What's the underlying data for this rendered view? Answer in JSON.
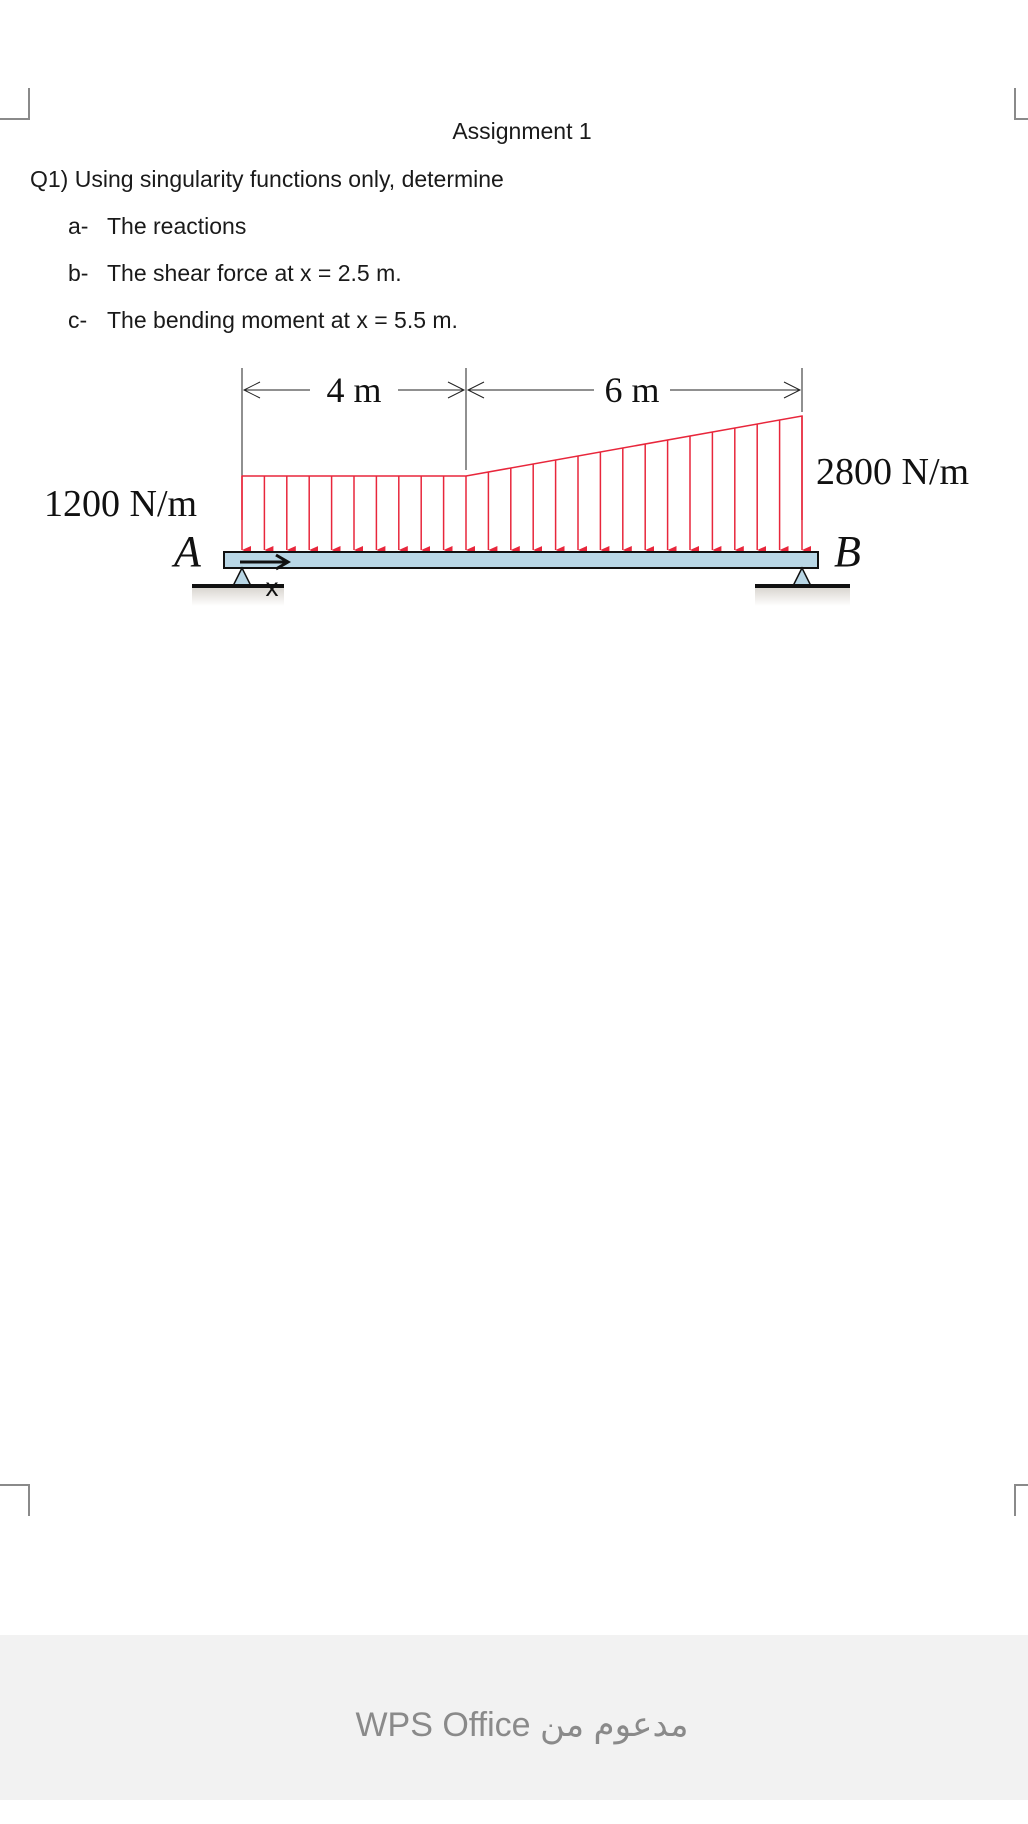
{
  "document": {
    "title": "Assignment 1",
    "question": "Q1) Using singularity functions only, determine",
    "items": [
      {
        "marker": "a-",
        "text": "The reactions"
      },
      {
        "marker": "b-",
        "text": "The shear force at x = 2.5 m."
      },
      {
        "marker": "c-",
        "text": "The bending moment at x = 5.5 m."
      }
    ]
  },
  "figure": {
    "dim_left": "4 m",
    "dim_right": "6 m",
    "load_left": "1200 N/m",
    "load_right": "2800 N/m",
    "support_a": "A",
    "support_b": "B",
    "coord_label": "x",
    "load_color": "#e8263b",
    "beam_color": "#b9d7e6"
  },
  "footer": {
    "brand": "WPS Office مدعوم من"
  }
}
